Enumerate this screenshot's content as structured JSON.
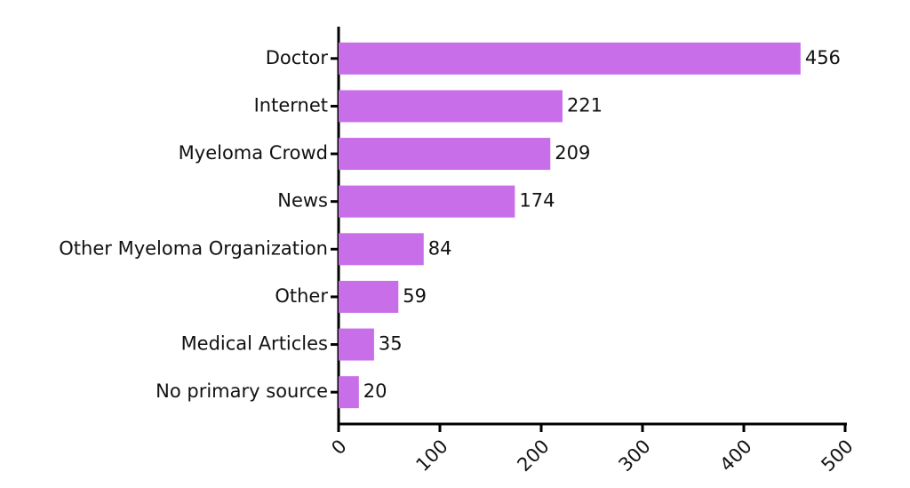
{
  "chart_data": {
    "type": "barh",
    "categories": [
      "Doctor",
      "Internet",
      "Myeloma Crowd",
      "News",
      "Other Myeloma Organization",
      "Other",
      "Medical Articles",
      "No primary source"
    ],
    "values": [
      456,
      221,
      209,
      174,
      84,
      59,
      35,
      20
    ],
    "color": "#c76ee8",
    "xlim": [
      0,
      500
    ],
    "xticks": [
      0,
      100,
      200,
      300,
      400,
      500
    ]
  }
}
